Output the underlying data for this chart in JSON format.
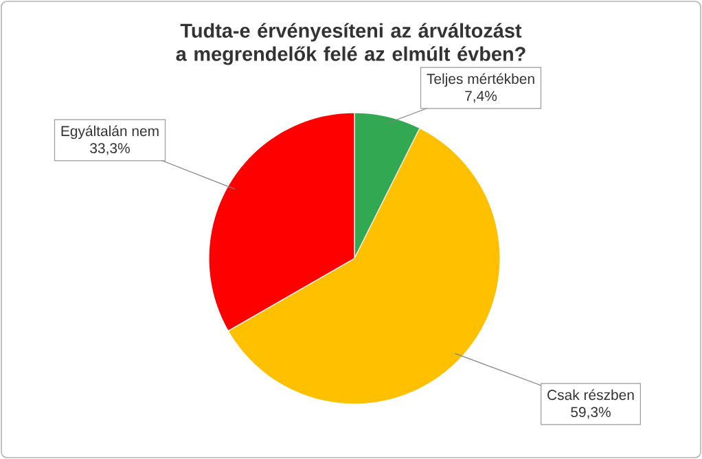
{
  "chart_data": {
    "type": "pie",
    "title": "Tudta-e érvényesíteni az árváltozást a megrendelők felé az elmúlt évben?",
    "categories": [
      "Teljes mértékben",
      "Csak részben",
      "Egyáltalán nem"
    ],
    "values": [
      7.4,
      59.3,
      33.3
    ],
    "value_labels": [
      "7,4%",
      "59,3%",
      "33,3%"
    ],
    "colors": [
      "#33a852",
      "#ffc000",
      "#ff0000"
    ]
  }
}
